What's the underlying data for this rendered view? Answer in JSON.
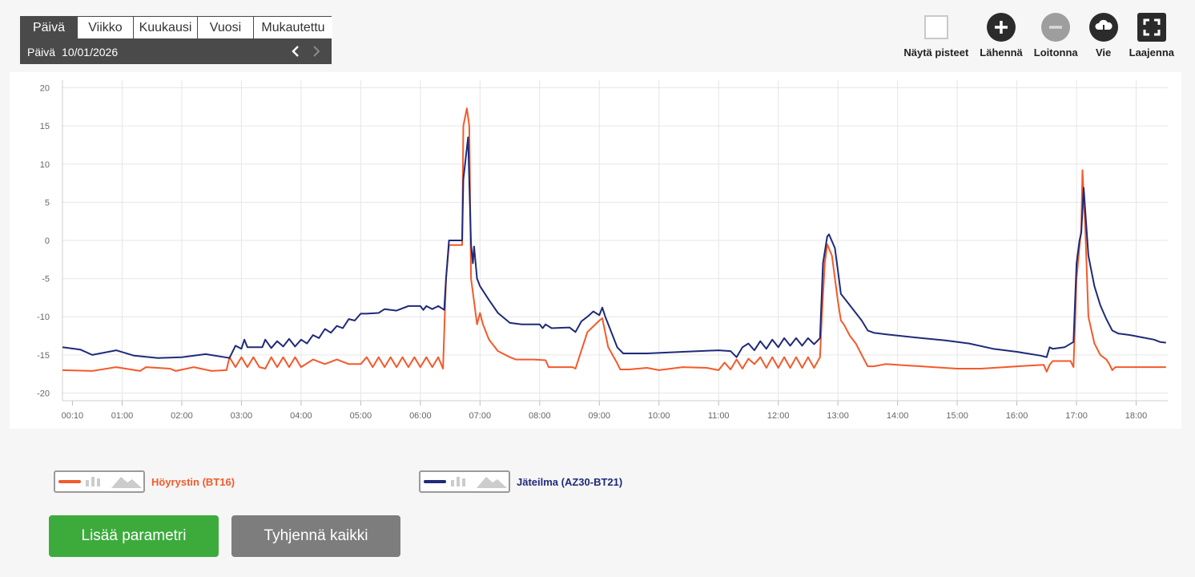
{
  "period": {
    "tabs": [
      "Päivä",
      "Viikko",
      "Kuukausi",
      "Vuosi",
      "Mukautettu"
    ],
    "active_index": 0,
    "date_label": "Päivä",
    "date_value": "10/01/2026"
  },
  "toolbar": {
    "show_points": "Näytä pisteet",
    "zoom_in": "Lähennä",
    "zoom_out": "Loitonna",
    "export": "Vie",
    "expand": "Laajenna"
  },
  "legend": [
    {
      "label": "Höyrystin (BT16)",
      "color": "#f4592a"
    },
    {
      "label": "Jäteilma (AZ30-BT21)",
      "color": "#1f2a78"
    }
  ],
  "buttons": {
    "add": "Lisää parametri",
    "clear": "Tyhjennä kaikki"
  },
  "chart_data": {
    "type": "line",
    "x_ticks": [
      "00:10",
      "01:00",
      "02:00",
      "03:00",
      "04:00",
      "05:00",
      "06:00",
      "07:00",
      "08:00",
      "09:00",
      "10:00",
      "11:00",
      "12:00",
      "13:00",
      "14:00",
      "15:00",
      "16:00",
      "17:00",
      "18:00"
    ],
    "ylim": [
      -21,
      21
    ],
    "y_ticks": [
      20,
      15,
      10,
      5,
      0,
      -5,
      -10,
      -15,
      -20
    ],
    "xlim_hours": [
      0.0,
      18.53
    ],
    "grid": true,
    "series": [
      {
        "name": "Höyrystin (BT16)",
        "color": "#f4592a",
        "points": [
          [
            0.0,
            -17.0
          ],
          [
            0.5,
            -17.1
          ],
          [
            0.9,
            -16.6
          ],
          [
            1.3,
            -17.1
          ],
          [
            1.4,
            -16.6
          ],
          [
            1.8,
            -16.8
          ],
          [
            1.9,
            -17.1
          ],
          [
            2.2,
            -16.6
          ],
          [
            2.5,
            -17.1
          ],
          [
            2.75,
            -17.0
          ],
          [
            2.8,
            -15.3
          ],
          [
            2.9,
            -16.6
          ],
          [
            3.0,
            -15.3
          ],
          [
            3.1,
            -16.6
          ],
          [
            3.2,
            -15.3
          ],
          [
            3.3,
            -16.6
          ],
          [
            3.4,
            -16.8
          ],
          [
            3.5,
            -15.3
          ],
          [
            3.6,
            -16.6
          ],
          [
            3.7,
            -15.3
          ],
          [
            3.8,
            -16.6
          ],
          [
            3.9,
            -15.3
          ],
          [
            4.0,
            -16.6
          ],
          [
            4.2,
            -15.6
          ],
          [
            4.4,
            -16.2
          ],
          [
            4.6,
            -15.6
          ],
          [
            4.8,
            -16.2
          ],
          [
            5.0,
            -16.2
          ],
          [
            5.1,
            -15.3
          ],
          [
            5.2,
            -16.6
          ],
          [
            5.3,
            -15.3
          ],
          [
            5.4,
            -16.6
          ],
          [
            5.5,
            -15.3
          ],
          [
            5.6,
            -16.6
          ],
          [
            5.7,
            -15.3
          ],
          [
            5.8,
            -16.6
          ],
          [
            5.9,
            -15.3
          ],
          [
            6.0,
            -16.6
          ],
          [
            6.1,
            -15.3
          ],
          [
            6.2,
            -16.6
          ],
          [
            6.3,
            -15.3
          ],
          [
            6.38,
            -16.8
          ],
          [
            6.43,
            -5
          ],
          [
            6.48,
            -0.6
          ],
          [
            6.7,
            -0.6
          ],
          [
            6.72,
            15
          ],
          [
            6.78,
            17.3
          ],
          [
            6.82,
            15
          ],
          [
            6.85,
            -5
          ],
          [
            6.9,
            -8
          ],
          [
            6.95,
            -11
          ],
          [
            7.0,
            -9.5
          ],
          [
            7.05,
            -11
          ],
          [
            7.15,
            -13
          ],
          [
            7.3,
            -14.5
          ],
          [
            7.5,
            -15.3
          ],
          [
            7.6,
            -15.6
          ],
          [
            7.9,
            -15.6
          ],
          [
            8.1,
            -15.7
          ],
          [
            8.15,
            -16.6
          ],
          [
            8.55,
            -16.6
          ],
          [
            8.6,
            -16.8
          ],
          [
            8.8,
            -12
          ],
          [
            9.0,
            -10.5
          ],
          [
            9.05,
            -10.2
          ],
          [
            9.15,
            -14
          ],
          [
            9.3,
            -16.1
          ],
          [
            9.35,
            -16.9
          ],
          [
            9.5,
            -16.9
          ],
          [
            9.8,
            -16.7
          ],
          [
            10.0,
            -17.0
          ],
          [
            10.4,
            -16.6
          ],
          [
            10.8,
            -16.7
          ],
          [
            11.0,
            -17.0
          ],
          [
            11.1,
            -16.0
          ],
          [
            11.2,
            -16.9
          ],
          [
            11.3,
            -15.6
          ],
          [
            11.4,
            -16.8
          ],
          [
            11.5,
            -15.5
          ],
          [
            11.6,
            -16.2
          ],
          [
            11.7,
            -15.3
          ],
          [
            11.8,
            -16.7
          ],
          [
            11.9,
            -15.3
          ],
          [
            12.0,
            -16.7
          ],
          [
            12.1,
            -15.3
          ],
          [
            12.2,
            -16.7
          ],
          [
            12.3,
            -15.3
          ],
          [
            12.4,
            -16.7
          ],
          [
            12.5,
            -15.3
          ],
          [
            12.6,
            -16.7
          ],
          [
            12.7,
            -15.3
          ],
          [
            12.73,
            -10
          ],
          [
            12.78,
            -3
          ],
          [
            12.82,
            -0.5
          ],
          [
            12.9,
            -2
          ],
          [
            13.0,
            -8
          ],
          [
            13.05,
            -10.5
          ],
          [
            13.1,
            -11
          ],
          [
            13.2,
            -12.5
          ],
          [
            13.3,
            -13.5
          ],
          [
            13.4,
            -15
          ],
          [
            13.5,
            -16.5
          ],
          [
            13.6,
            -16.5
          ],
          [
            13.8,
            -16.2
          ],
          [
            14.2,
            -16.4
          ],
          [
            14.6,
            -16.6
          ],
          [
            15.0,
            -16.8
          ],
          [
            15.4,
            -16.8
          ],
          [
            15.8,
            -16.6
          ],
          [
            16.2,
            -16.4
          ],
          [
            16.45,
            -16.3
          ],
          [
            16.5,
            -17.2
          ],
          [
            16.55,
            -16.3
          ],
          [
            16.6,
            -15.8
          ],
          [
            16.9,
            -15.8
          ],
          [
            16.95,
            -16.6
          ],
          [
            17.0,
            -5
          ],
          [
            17.05,
            -0.8
          ],
          [
            17.08,
            1.5
          ],
          [
            17.1,
            9.2
          ],
          [
            17.15,
            1
          ],
          [
            17.2,
            -10
          ],
          [
            17.3,
            -13.5
          ],
          [
            17.4,
            -15
          ],
          [
            17.5,
            -15.6
          ],
          [
            17.55,
            -16.2
          ],
          [
            17.6,
            -17.0
          ],
          [
            17.65,
            -16.6
          ],
          [
            18.5,
            -16.6
          ]
        ]
      },
      {
        "name": "Jäteilma (AZ30-BT21)",
        "color": "#1f2a78",
        "points": [
          [
            0.0,
            -14.0
          ],
          [
            0.3,
            -14.3
          ],
          [
            0.5,
            -15.0
          ],
          [
            0.9,
            -14.4
          ],
          [
            1.2,
            -15.1
          ],
          [
            1.6,
            -15.4
          ],
          [
            2.0,
            -15.3
          ],
          [
            2.4,
            -14.9
          ],
          [
            2.8,
            -15.4
          ],
          [
            2.9,
            -13.8
          ],
          [
            3.0,
            -14.2
          ],
          [
            3.05,
            -13.0
          ],
          [
            3.1,
            -14.0
          ],
          [
            3.35,
            -14.0
          ],
          [
            3.4,
            -13.0
          ],
          [
            3.5,
            -14.1
          ],
          [
            3.6,
            -13.2
          ],
          [
            3.7,
            -13.9
          ],
          [
            3.8,
            -12.9
          ],
          [
            3.9,
            -13.9
          ],
          [
            4.0,
            -13.0
          ],
          [
            4.1,
            -13.5
          ],
          [
            4.2,
            -12.4
          ],
          [
            4.3,
            -12.8
          ],
          [
            4.4,
            -11.6
          ],
          [
            4.5,
            -12.1
          ],
          [
            4.6,
            -11.2
          ],
          [
            4.7,
            -11.5
          ],
          [
            4.8,
            -10.3
          ],
          [
            4.9,
            -10.5
          ],
          [
            5.0,
            -9.6
          ],
          [
            5.1,
            -9.6
          ],
          [
            5.3,
            -9.5
          ],
          [
            5.4,
            -9.0
          ],
          [
            5.6,
            -9.2
          ],
          [
            5.8,
            -8.6
          ],
          [
            6.0,
            -8.6
          ],
          [
            6.05,
            -9.1
          ],
          [
            6.1,
            -8.6
          ],
          [
            6.2,
            -9.0
          ],
          [
            6.3,
            -8.6
          ],
          [
            6.4,
            -9.1
          ],
          [
            6.43,
            -5
          ],
          [
            6.48,
            0.0
          ],
          [
            6.7,
            0.0
          ],
          [
            6.72,
            8
          ],
          [
            6.8,
            13.5
          ],
          [
            6.85,
            -0.5
          ],
          [
            6.88,
            -3
          ],
          [
            6.9,
            -0.8
          ],
          [
            6.95,
            -5
          ],
          [
            7.0,
            -6
          ],
          [
            7.15,
            -7.8
          ],
          [
            7.3,
            -9.5
          ],
          [
            7.5,
            -10.8
          ],
          [
            7.7,
            -11
          ],
          [
            8.0,
            -11
          ],
          [
            8.05,
            -11.5
          ],
          [
            8.1,
            -11
          ],
          [
            8.2,
            -11.5
          ],
          [
            8.5,
            -11.4
          ],
          [
            8.6,
            -12
          ],
          [
            8.7,
            -10.6
          ],
          [
            8.8,
            -10.0
          ],
          [
            8.9,
            -9.3
          ],
          [
            9.0,
            -9.8
          ],
          [
            9.05,
            -8.8
          ],
          [
            9.1,
            -10
          ],
          [
            9.2,
            -12
          ],
          [
            9.3,
            -14
          ],
          [
            9.4,
            -14.8
          ],
          [
            9.8,
            -14.8
          ],
          [
            10.4,
            -14.6
          ],
          [
            11.0,
            -14.4
          ],
          [
            11.2,
            -14.5
          ],
          [
            11.3,
            -15.3
          ],
          [
            11.4,
            -14
          ],
          [
            11.5,
            -13.5
          ],
          [
            11.6,
            -14.4
          ],
          [
            11.7,
            -13.2
          ],
          [
            11.8,
            -14.2
          ],
          [
            11.9,
            -13.0
          ],
          [
            12.0,
            -14.0
          ],
          [
            12.1,
            -12.8
          ],
          [
            12.2,
            -13.8
          ],
          [
            12.3,
            -12.8
          ],
          [
            12.4,
            -13.8
          ],
          [
            12.5,
            -12.8
          ],
          [
            12.6,
            -13.6
          ],
          [
            12.7,
            -12.8
          ],
          [
            12.75,
            -3
          ],
          [
            12.82,
            0.5
          ],
          [
            12.85,
            0.8
          ],
          [
            12.95,
            -1
          ],
          [
            13.0,
            -4
          ],
          [
            13.05,
            -7
          ],
          [
            13.1,
            -7.5
          ],
          [
            13.2,
            -8.5
          ],
          [
            13.3,
            -9.5
          ],
          [
            13.4,
            -10.5
          ],
          [
            13.5,
            -11.8
          ],
          [
            13.6,
            -12.1
          ],
          [
            13.8,
            -12.3
          ],
          [
            14.4,
            -12.8
          ],
          [
            14.8,
            -13.1
          ],
          [
            15.2,
            -13.5
          ],
          [
            15.6,
            -14.2
          ],
          [
            16.0,
            -14.6
          ],
          [
            16.4,
            -15.1
          ],
          [
            16.5,
            -15.3
          ],
          [
            16.55,
            -14.0
          ],
          [
            16.6,
            -14.2
          ],
          [
            16.8,
            -14.0
          ],
          [
            16.95,
            -13.3
          ],
          [
            17.0,
            -3
          ],
          [
            17.05,
            0.0
          ],
          [
            17.08,
            1.0
          ],
          [
            17.12,
            6.9
          ],
          [
            17.2,
            -2
          ],
          [
            17.3,
            -6
          ],
          [
            17.4,
            -8.5
          ],
          [
            17.5,
            -10.3
          ],
          [
            17.6,
            -11.8
          ],
          [
            17.7,
            -12.2
          ],
          [
            17.9,
            -12.4
          ],
          [
            18.1,
            -12.7
          ],
          [
            18.3,
            -13.0
          ],
          [
            18.4,
            -13.3
          ],
          [
            18.5,
            -13.4
          ]
        ]
      }
    ]
  }
}
